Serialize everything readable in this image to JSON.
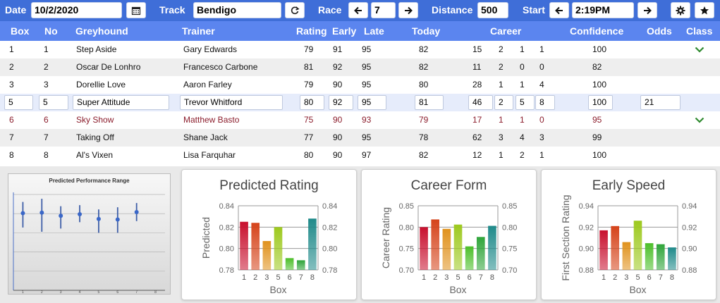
{
  "toolbar": {
    "date_label": "Date",
    "date_value": "10/2/2020",
    "track_label": "Track",
    "track_value": "Bendigo",
    "race_label": "Race",
    "race_value": "7",
    "distance_label": "Distance",
    "distance_value": "500",
    "start_label": "Start",
    "start_value": "2:19PM",
    "icons": [
      "calendar-icon",
      "refresh-icon",
      "arrow-left-icon",
      "arrow-right-icon",
      "gear-icon",
      "star-icon"
    ]
  },
  "columns": {
    "box": "Box",
    "no": "No",
    "greyhound": "Greyhound",
    "trainer": "Trainer",
    "rating": "Rating",
    "early": "Early",
    "late": "Late",
    "today": "Today",
    "career": "Career",
    "confidence": "Confidence",
    "odds": "Odds",
    "class": "Class"
  },
  "rows": [
    {
      "box": "1",
      "no": "1",
      "greyhound": "Step Aside",
      "trainer": "Gary Edwards",
      "rating": "79",
      "early": "91",
      "late": "95",
      "today": "82",
      "career": [
        "15",
        "2",
        "1",
        "1"
      ],
      "confidence": "100",
      "odds": "",
      "class_check": true,
      "state": "normal"
    },
    {
      "box": "2",
      "no": "2",
      "greyhound": "Oscar De Lonhro",
      "trainer": "Francesco Carbone",
      "rating": "81",
      "early": "92",
      "late": "95",
      "today": "82",
      "career": [
        "11",
        "2",
        "0",
        "0"
      ],
      "confidence": "82",
      "odds": "",
      "class_check": false,
      "state": "normal"
    },
    {
      "box": "3",
      "no": "3",
      "greyhound": "Dorellie Love",
      "trainer": "Aaron Farley",
      "rating": "79",
      "early": "90",
      "late": "95",
      "today": "80",
      "career": [
        "28",
        "1",
        "1",
        "4"
      ],
      "confidence": "100",
      "odds": "",
      "class_check": false,
      "state": "normal"
    },
    {
      "box": "5",
      "no": "5",
      "greyhound": "Super Attitude",
      "trainer": "Trevor Whitford",
      "rating": "80",
      "early": "92",
      "late": "95",
      "today": "81",
      "career": [
        "46",
        "2",
        "5",
        "8"
      ],
      "confidence": "100",
      "odds": "21",
      "class_check": false,
      "state": "edit"
    },
    {
      "box": "6",
      "no": "6",
      "greyhound": "Sky Show",
      "trainer": "Matthew Basto",
      "rating": "75",
      "early": "90",
      "late": "93",
      "today": "79",
      "career": [
        "17",
        "1",
        "1",
        "0"
      ],
      "confidence": "95",
      "odds": "",
      "class_check": true,
      "state": "red"
    },
    {
      "box": "7",
      "no": "7",
      "greyhound": "Taking Off",
      "trainer": "Shane Jack",
      "rating": "77",
      "early": "90",
      "late": "95",
      "today": "78",
      "career": [
        "62",
        "3",
        "4",
        "3"
      ],
      "confidence": "99",
      "odds": "",
      "class_check": false,
      "state": "normal"
    },
    {
      "box": "8",
      "no": "8",
      "greyhound": "Al's Vixen",
      "trainer": "Lisa Farquhar",
      "rating": "80",
      "early": "90",
      "late": "97",
      "today": "82",
      "career": [
        "12",
        "1",
        "2",
        "1"
      ],
      "confidence": "100",
      "odds": "",
      "class_check": false,
      "state": "normal"
    }
  ],
  "colors": {
    "toolbar_bg": "#3f6ed8",
    "header_bg": "#5b85ef",
    "row_alt": "#eeeeee",
    "row_edit": "#e6ecfb",
    "red_row_text": "#8b1d2c",
    "check_green": "#2f8a2f",
    "bars": [
      "#c8102e",
      "#d5431a",
      "#e0921d",
      "#9dc91e",
      "#4cbf2a",
      "#2fa53a",
      "#1f8a8a"
    ]
  },
  "chart_data": [
    {
      "type": "scatter",
      "title": "Predicted Performance Range",
      "x": [
        1,
        2,
        3,
        4,
        5,
        6,
        7
      ],
      "xticks": [
        "1",
        "2",
        "3",
        "4",
        "5",
        "6",
        "7",
        "8"
      ],
      "series": [
        {
          "values": [
            0.8225,
            0.823,
            0.82,
            0.8215,
            0.817,
            0.8165,
            0.8235
          ],
          "low": [
            0.809,
            0.805,
            0.808,
            0.814,
            0.804,
            0.804,
            0.815
          ],
          "high": [
            0.833,
            0.836,
            0.829,
            0.83,
            0.826,
            0.828,
            0.832
          ]
        }
      ],
      "ylim": [
        0.75,
        0.842
      ],
      "grid": true
    },
    {
      "type": "bar",
      "title": "Predicted Rating",
      "categories": [
        "1",
        "2",
        "3",
        "5",
        "6",
        "7",
        "8"
      ],
      "values": [
        0.825,
        0.824,
        0.807,
        0.82,
        0.791,
        0.789,
        0.828
      ],
      "xlabel": "Box",
      "ylabel": "Predicted",
      "ylim": [
        0.78,
        0.84
      ],
      "yticks": [
        "0.78",
        "0.80",
        "0.82",
        "0.84"
      ],
      "grid": true
    },
    {
      "type": "bar",
      "title": "Career Form",
      "categories": [
        "1",
        "2",
        "3",
        "5",
        "6",
        "7",
        "8"
      ],
      "values": [
        0.8,
        0.818,
        0.796,
        0.806,
        0.755,
        0.777,
        0.803
      ],
      "xlabel": "Box",
      "ylabel": "Career Rating",
      "ylim": [
        0.7,
        0.85
      ],
      "yticks": [
        "0.70",
        "0.75",
        "0.80",
        "0.85"
      ],
      "grid": true
    },
    {
      "type": "bar",
      "title": "Early Speed",
      "categories": [
        "1",
        "2",
        "3",
        "5",
        "6",
        "7",
        "8"
      ],
      "values": [
        0.917,
        0.921,
        0.906,
        0.926,
        0.905,
        0.904,
        0.901
      ],
      "xlabel": "Box",
      "ylabel": "First Section Rating",
      "ylim": [
        0.88,
        0.94
      ],
      "yticks": [
        "0.88",
        "0.90",
        "0.92",
        "0.94"
      ],
      "grid": true
    }
  ]
}
